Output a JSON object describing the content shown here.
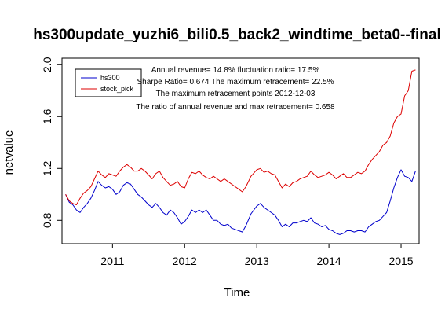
{
  "chart_data": {
    "type": "line",
    "title": "hs300update_yuzhi6_bili0.5_back2_windtime_beta0--final",
    "xlabel": "Time",
    "ylabel": "netvalue",
    "xlim": [
      2010.3,
      2015.25
    ],
    "ylim": [
      0.62,
      2.05
    ],
    "x_ticks": [
      {
        "value": 2011,
        "label": "2011"
      },
      {
        "value": 2012,
        "label": "2012"
      },
      {
        "value": 2013,
        "label": "2013"
      },
      {
        "value": 2014,
        "label": "2014"
      },
      {
        "value": 2015,
        "label": "2015"
      }
    ],
    "y_ticks": [
      {
        "value": 0.8,
        "label": "0.8"
      },
      {
        "value": 1.2,
        "label": "1.2"
      },
      {
        "value": 1.6,
        "label": "1.6"
      },
      {
        "value": 2.0,
        "label": "2.0"
      }
    ],
    "legend": {
      "position": "top-left",
      "entries": [
        {
          "label": "hs300",
          "color": "#0000cc"
        },
        {
          "label": "stock_pick",
          "color": "#dd0000"
        }
      ]
    },
    "annotations": [
      "Annual revenue=  14.8% fluctuation ratio= 17.5%",
      "Sharpe Ratio= 0.674 The maximum retracement= 22.5%",
      "The maximum retracement points 2012-12-03",
      "The ratio of annual revenue and max retracement= 0.658"
    ],
    "grid": false,
    "series": [
      {
        "name": "hs300",
        "color": "#0000cc",
        "x": [
          2010.35,
          2010.4,
          2010.45,
          2010.5,
          2010.55,
          2010.6,
          2010.65,
          2010.7,
          2010.75,
          2010.8,
          2010.85,
          2010.9,
          2010.95,
          2011.0,
          2011.05,
          2011.1,
          2011.15,
          2011.2,
          2011.25,
          2011.3,
          2011.35,
          2011.4,
          2011.45,
          2011.5,
          2011.55,
          2011.6,
          2011.65,
          2011.7,
          2011.75,
          2011.8,
          2011.85,
          2011.9,
          2011.95,
          2012.0,
          2012.05,
          2012.1,
          2012.15,
          2012.2,
          2012.25,
          2012.3,
          2012.35,
          2012.4,
          2012.45,
          2012.5,
          2012.55,
          2012.6,
          2012.65,
          2012.7,
          2012.75,
          2012.8,
          2012.85,
          2012.92,
          2013.0,
          2013.05,
          2013.1,
          2013.15,
          2013.2,
          2013.25,
          2013.3,
          2013.35,
          2013.4,
          2013.45,
          2013.5,
          2013.55,
          2013.6,
          2013.65,
          2013.7,
          2013.75,
          2013.8,
          2013.85,
          2013.9,
          2013.95,
          2014.0,
          2014.05,
          2014.1,
          2014.15,
          2014.2,
          2014.25,
          2014.3,
          2014.35,
          2014.4,
          2014.45,
          2014.5,
          2014.55,
          2014.6,
          2014.65,
          2014.7,
          2014.75,
          2014.8,
          2014.85,
          2014.9,
          2014.95,
          2015.0,
          2015.05,
          2015.1,
          2015.15,
          2015.2
        ],
        "y": [
          1.0,
          0.94,
          0.92,
          0.88,
          0.86,
          0.9,
          0.93,
          0.97,
          1.03,
          1.1,
          1.07,
          1.05,
          1.06,
          1.04,
          1.0,
          1.02,
          1.07,
          1.09,
          1.08,
          1.04,
          1.0,
          0.98,
          0.95,
          0.92,
          0.9,
          0.93,
          0.9,
          0.86,
          0.84,
          0.88,
          0.86,
          0.82,
          0.77,
          0.79,
          0.83,
          0.88,
          0.86,
          0.88,
          0.86,
          0.88,
          0.84,
          0.8,
          0.8,
          0.77,
          0.76,
          0.77,
          0.74,
          0.73,
          0.72,
          0.71,
          0.76,
          0.85,
          0.91,
          0.93,
          0.9,
          0.88,
          0.86,
          0.84,
          0.8,
          0.75,
          0.77,
          0.75,
          0.78,
          0.78,
          0.79,
          0.8,
          0.79,
          0.82,
          0.78,
          0.77,
          0.75,
          0.76,
          0.73,
          0.72,
          0.7,
          0.69,
          0.7,
          0.72,
          0.72,
          0.71,
          0.72,
          0.72,
          0.71,
          0.75,
          0.77,
          0.79,
          0.8,
          0.83,
          0.86,
          0.95,
          1.05,
          1.13,
          1.19,
          1.14,
          1.13,
          1.1,
          1.18
        ]
      },
      {
        "name": "stock_pick",
        "color": "#dd0000",
        "x": [
          2010.35,
          2010.4,
          2010.45,
          2010.5,
          2010.55,
          2010.6,
          2010.65,
          2010.7,
          2010.75,
          2010.8,
          2010.85,
          2010.9,
          2010.95,
          2011.0,
          2011.05,
          2011.1,
          2011.15,
          2011.2,
          2011.25,
          2011.3,
          2011.35,
          2011.4,
          2011.45,
          2011.5,
          2011.55,
          2011.6,
          2011.65,
          2011.7,
          2011.75,
          2011.8,
          2011.85,
          2011.9,
          2011.95,
          2012.0,
          2012.05,
          2012.1,
          2012.15,
          2012.2,
          2012.25,
          2012.3,
          2012.35,
          2012.4,
          2012.45,
          2012.5,
          2012.55,
          2012.6,
          2012.65,
          2012.7,
          2012.75,
          2012.8,
          2012.85,
          2012.92,
          2013.0,
          2013.05,
          2013.1,
          2013.15,
          2013.2,
          2013.25,
          2013.3,
          2013.35,
          2013.4,
          2013.45,
          2013.5,
          2013.55,
          2013.6,
          2013.65,
          2013.7,
          2013.75,
          2013.8,
          2013.85,
          2013.9,
          2013.95,
          2014.0,
          2014.05,
          2014.1,
          2014.15,
          2014.2,
          2014.25,
          2014.3,
          2014.35,
          2014.4,
          2014.45,
          2014.5,
          2014.55,
          2014.6,
          2014.65,
          2014.7,
          2014.75,
          2014.8,
          2014.85,
          2014.9,
          2014.95,
          2015.0,
          2015.05,
          2015.1,
          2015.15,
          2015.2
        ],
        "y": [
          1.0,
          0.95,
          0.93,
          0.92,
          0.97,
          1.01,
          1.03,
          1.06,
          1.12,
          1.18,
          1.15,
          1.13,
          1.16,
          1.15,
          1.14,
          1.18,
          1.21,
          1.23,
          1.21,
          1.18,
          1.18,
          1.2,
          1.18,
          1.15,
          1.12,
          1.16,
          1.18,
          1.13,
          1.1,
          1.07,
          1.08,
          1.1,
          1.06,
          1.05,
          1.12,
          1.17,
          1.16,
          1.18,
          1.15,
          1.13,
          1.12,
          1.14,
          1.12,
          1.1,
          1.12,
          1.1,
          1.08,
          1.06,
          1.04,
          1.02,
          1.06,
          1.14,
          1.19,
          1.2,
          1.17,
          1.18,
          1.16,
          1.15,
          1.1,
          1.05,
          1.08,
          1.06,
          1.09,
          1.1,
          1.12,
          1.13,
          1.14,
          1.18,
          1.15,
          1.13,
          1.14,
          1.15,
          1.17,
          1.15,
          1.12,
          1.14,
          1.16,
          1.13,
          1.13,
          1.15,
          1.17,
          1.16,
          1.18,
          1.23,
          1.27,
          1.3,
          1.33,
          1.38,
          1.4,
          1.45,
          1.55,
          1.6,
          1.62,
          1.76,
          1.8,
          1.95,
          1.96
        ]
      }
    ]
  }
}
